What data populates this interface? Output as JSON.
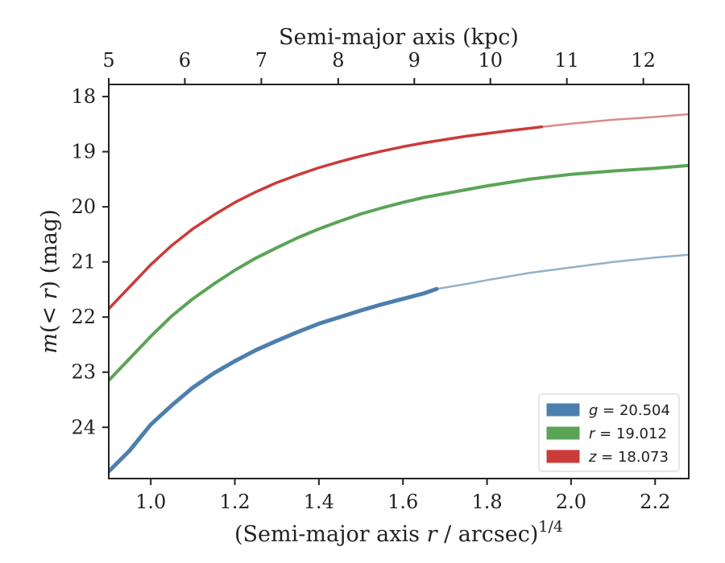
{
  "chart_data": {
    "type": "line",
    "xlabel": "(Semi-major axis r / arcsec)^{1/4}",
    "x2label": "Semi-major axis (kpc)",
    "ylabel": "m(< r) (mag)",
    "xlim": [
      0.9,
      2.28
    ],
    "ylim": [
      24.93,
      17.78
    ],
    "y_inverted": true,
    "x_ticks": [
      1.0,
      1.2,
      1.4,
      1.6,
      1.8,
      2.0,
      2.2
    ],
    "x_tick_labels": [
      "1.0",
      "1.2",
      "1.4",
      "1.6",
      "1.8",
      "2.0",
      "2.2"
    ],
    "y_ticks": [
      18,
      19,
      20,
      21,
      22,
      23,
      24
    ],
    "y_tick_labels": [
      "18",
      "19",
      "20",
      "21",
      "22",
      "23",
      "24"
    ],
    "x2_ticks_kpc": [
      5,
      6,
      7,
      8,
      9,
      10,
      11,
      12
    ],
    "x2_tick_labels": [
      "5",
      "6",
      "7",
      "8",
      "9",
      "10",
      "11",
      "12"
    ],
    "x2_tick_positions_x": [
      0.9,
      1.081,
      1.263,
      1.446,
      1.627,
      1.808,
      1.99,
      2.172
    ],
    "legend": {
      "position": "lower-right"
    },
    "series": [
      {
        "name": "g = 20.504",
        "label_var": "g",
        "label_val": "= 20.504",
        "color": "#4c7fae",
        "fade_color": "#93b1c7",
        "solid_until_x": 1.68,
        "x": [
          0.9,
          0.95,
          1.0,
          1.05,
          1.1,
          1.15,
          1.2,
          1.25,
          1.3,
          1.35,
          1.4,
          1.45,
          1.5,
          1.55,
          1.6,
          1.65,
          1.68,
          1.75,
          1.8,
          1.9,
          2.0,
          2.1,
          2.2,
          2.28
        ],
        "y": [
          24.8,
          24.42,
          23.95,
          23.6,
          23.28,
          23.02,
          22.8,
          22.6,
          22.43,
          22.27,
          22.12,
          22.0,
          21.88,
          21.77,
          21.67,
          21.57,
          21.49,
          21.4,
          21.33,
          21.2,
          21.1,
          21.0,
          20.92,
          20.87
        ]
      },
      {
        "name": "r = 19.012",
        "label_var": "r",
        "label_val": "= 19.012",
        "color": "#5aa456",
        "fade_color": "#5aa456",
        "solid_until_x": 2.28,
        "x": [
          0.9,
          0.95,
          1.0,
          1.05,
          1.1,
          1.15,
          1.2,
          1.25,
          1.3,
          1.35,
          1.4,
          1.45,
          1.5,
          1.55,
          1.6,
          1.65,
          1.7,
          1.75,
          1.8,
          1.85,
          1.9,
          2.0,
          2.1,
          2.2,
          2.28
        ],
        "y": [
          23.15,
          22.75,
          22.35,
          21.98,
          21.67,
          21.4,
          21.15,
          20.93,
          20.74,
          20.56,
          20.4,
          20.26,
          20.13,
          20.02,
          19.92,
          19.83,
          19.76,
          19.69,
          19.62,
          19.56,
          19.5,
          19.41,
          19.35,
          19.3,
          19.25
        ]
      },
      {
        "name": "z = 18.073",
        "label_var": "z",
        "label_val": "= 18.073",
        "color": "#cc3a3a",
        "fade_color": "#db8a8a",
        "solid_until_x": 1.93,
        "x": [
          0.9,
          0.95,
          1.0,
          1.05,
          1.1,
          1.15,
          1.2,
          1.25,
          1.3,
          1.35,
          1.4,
          1.45,
          1.5,
          1.55,
          1.6,
          1.65,
          1.7,
          1.75,
          1.8,
          1.85,
          1.93,
          2.0,
          2.1,
          2.2,
          2.28
        ],
        "y": [
          21.85,
          21.45,
          21.05,
          20.7,
          20.4,
          20.15,
          19.92,
          19.73,
          19.56,
          19.42,
          19.29,
          19.18,
          19.08,
          18.99,
          18.91,
          18.84,
          18.78,
          18.72,
          18.67,
          18.62,
          18.55,
          18.49,
          18.42,
          18.37,
          18.32
        ]
      }
    ]
  }
}
